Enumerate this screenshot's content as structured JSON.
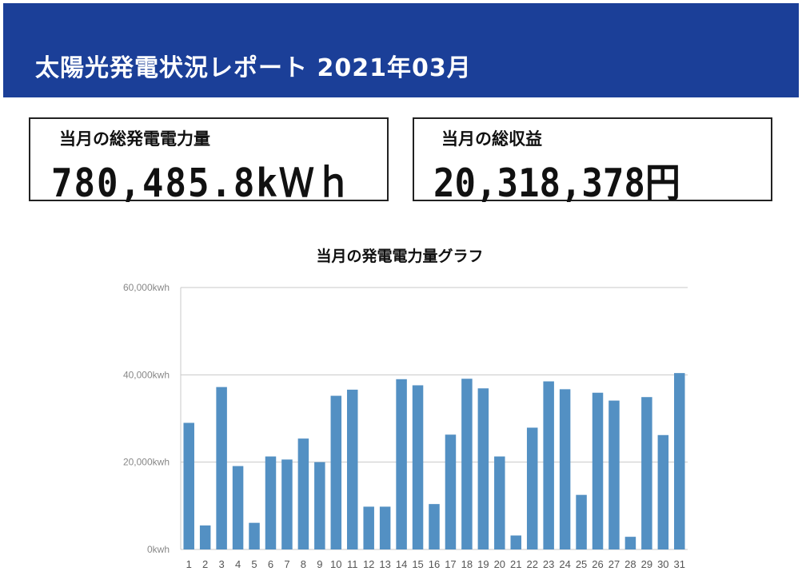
{
  "colors": {
    "header_bg": "#1b3f98",
    "bar": "#5390c3",
    "grid": "#c8c8c8",
    "axis_text": "#888888"
  },
  "header": {
    "title": "太陽光発電状況レポート 2021年03月"
  },
  "summary": {
    "total_generation_label": "当月の総発電電力量",
    "total_generation_value": "780,485.8kＷｈ",
    "total_revenue_label": "当月の総収益",
    "total_revenue_value": "20,318,378円"
  },
  "chart_data": {
    "type": "bar",
    "title": "当月の発電電力量グラフ",
    "xlabel": "",
    "ylabel": "",
    "unit": "kwh",
    "categories": [
      "1",
      "2",
      "3",
      "4",
      "5",
      "6",
      "7",
      "8",
      "9",
      "10",
      "11",
      "12",
      "13",
      "14",
      "15",
      "16",
      "17",
      "18",
      "19",
      "20",
      "21",
      "22",
      "23",
      "24",
      "25",
      "26",
      "27",
      "28",
      "29",
      "30",
      "31"
    ],
    "values": [
      29000,
      5500,
      37200,
      19100,
      6100,
      21300,
      20600,
      25400,
      20000,
      35200,
      36600,
      9800,
      9800,
      39000,
      37600,
      10400,
      26300,
      39100,
      36900,
      21300,
      3200,
      27900,
      38500,
      36700,
      12500,
      35900,
      34100,
      2900,
      34900,
      26200,
      40400
    ],
    "ylim": [
      0,
      60000
    ],
    "yticks": [
      0,
      20000,
      40000,
      60000
    ],
    "ytick_labels": [
      "0kwh",
      "20,000kwh",
      "40,000kwh",
      "60,000kwh"
    ],
    "grid": true,
    "legend": "none"
  }
}
